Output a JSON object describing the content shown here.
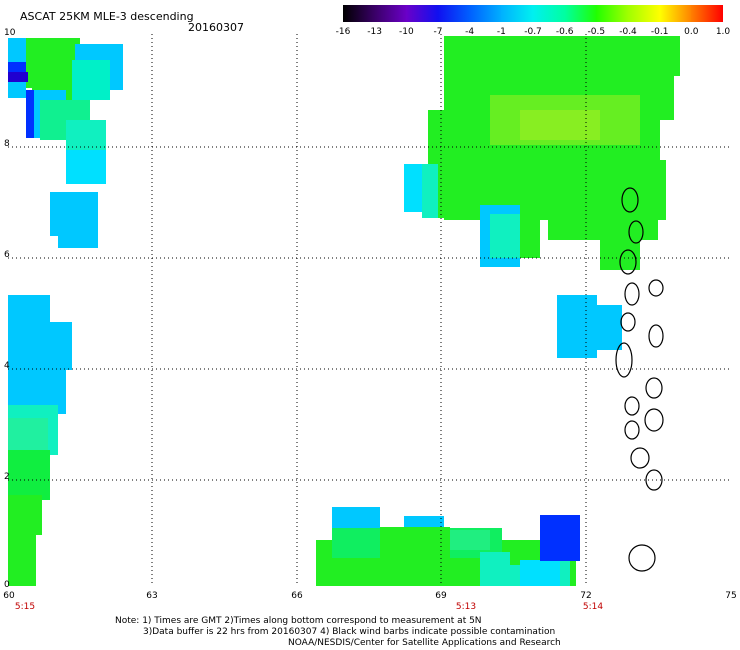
{
  "header": {
    "title": "ASCAT 25KM MLE-3 descending",
    "date": "20160307"
  },
  "colorbar": {
    "labels": [
      "-16",
      "-13",
      "-10",
      "-7",
      "-4",
      "-1",
      "-0.7",
      "-0.6",
      "-0.5",
      "-0.4",
      "-0.1",
      "0.0",
      "1.0"
    ],
    "colors": [
      "#000000",
      "#3a0068",
      "#6b00c8",
      "#1010f0",
      "#0060ff",
      "#00b0ff",
      "#00f0f0",
      "#00ffa0",
      "#20ff00",
      "#a0ff00",
      "#ffff00",
      "#ff8000",
      "#ff0000"
    ]
  },
  "map": {
    "y_axis_labels": [
      "10",
      "8",
      "6",
      "4",
      "2",
      "0"
    ],
    "x_axis_labels": [
      "60",
      "63",
      "66",
      "69",
      "72",
      "75"
    ],
    "time_labels": [
      "5:15",
      "5:13",
      "5:14"
    ],
    "colors": {
      "green": "#22ee22",
      "cyan": "#00e0ff",
      "sky": "#00c8ff",
      "teal": "#10f0c0",
      "blue": "#0030ff",
      "purple": "#2000d0",
      "coast": "#000000"
    }
  },
  "footer": {
    "note_line1": "Note: 1) Times are GMT 2)Times along bottom correspond to measurement at 5N",
    "note_line2": "3)Data buffer is 22 hrs from 20160307 4) Black wind barbs indicate possible contamination",
    "credit": "NOAA/NESDIS/Center for Satellite Applications and Research"
  }
}
